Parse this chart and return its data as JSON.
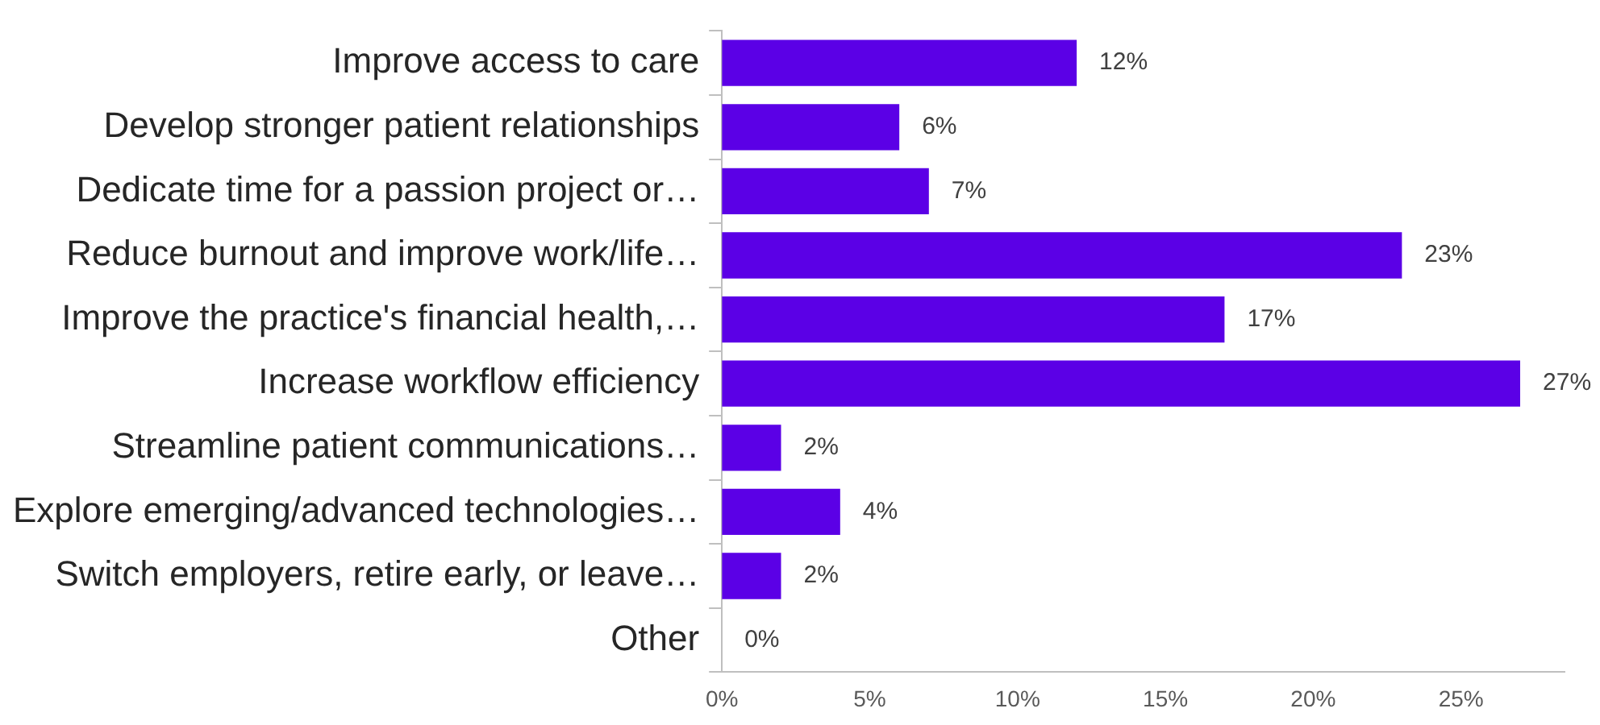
{
  "chart_data": {
    "type": "bar",
    "orientation": "horizontal",
    "categories": [
      "Improve access to care",
      "Develop stronger patient relationships",
      "Dedicate time for a passion project or…",
      "Reduce burnout and improve work/life…",
      "Improve the practice's financial health,…",
      "Increase workflow efficiency",
      "Streamline patient communications…",
      "Explore emerging/advanced technologies…",
      "Switch employers, retire early, or leave…",
      "Other"
    ],
    "values": [
      12,
      6,
      7,
      23,
      17,
      27,
      2,
      4,
      2,
      0
    ],
    "color": "#5b00e6",
    "xlim": [
      0,
      28.5
    ],
    "xticks": [
      {
        "value": 0,
        "label": "0%"
      },
      {
        "value": 5,
        "label": "5%"
      },
      {
        "value": 10,
        "label": "10%"
      },
      {
        "value": 15,
        "label": "15%"
      },
      {
        "value": 20,
        "label": "20%"
      },
      {
        "value": 25,
        "label": "25%"
      }
    ],
    "value_labels": [
      "12%",
      "6%",
      "7%",
      "23%",
      "17%",
      "27%",
      "2%",
      "4%",
      "2%",
      "0%"
    ],
    "grid": false,
    "legend": false
  }
}
